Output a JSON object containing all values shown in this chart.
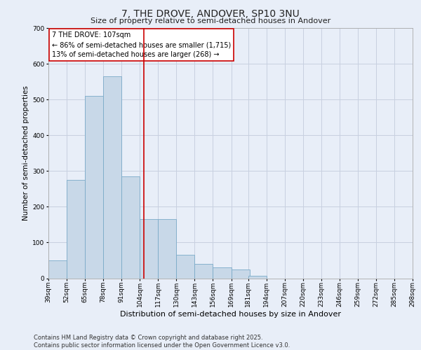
{
  "title_line1": "7, THE DROVE, ANDOVER, SP10 3NU",
  "title_line2": "Size of property relative to semi-detached houses in Andover",
  "xlabel": "Distribution of semi-detached houses by size in Andover",
  "ylabel": "Number of semi-detached properties",
  "footer_line1": "Contains HM Land Registry data © Crown copyright and database right 2025.",
  "footer_line2": "Contains public sector information licensed under the Open Government Licence v3.0.",
  "annotation_title": "7 THE DROVE: 107sqm",
  "annotation_line2": "← 86% of semi-detached houses are smaller (1,715)",
  "annotation_line3": "13% of semi-detached houses are larger (268) →",
  "bin_labels": [
    "39sqm",
    "52sqm",
    "65sqm",
    "78sqm",
    "91sqm",
    "104sqm",
    "117sqm",
    "130sqm",
    "143sqm",
    "156sqm",
    "169sqm",
    "181sqm",
    "194sqm",
    "207sqm",
    "220sqm",
    "233sqm",
    "246sqm",
    "259sqm",
    "272sqm",
    "285sqm",
    "298sqm"
  ],
  "bin_edges": [
    39,
    52,
    65,
    78,
    91,
    104,
    117,
    130,
    143,
    156,
    169,
    181,
    194,
    207,
    220,
    233,
    246,
    259,
    272,
    285,
    298
  ],
  "bar_heights": [
    50,
    275,
    510,
    565,
    285,
    165,
    165,
    65,
    40,
    30,
    25,
    7,
    0,
    0,
    0,
    0,
    0,
    0,
    0,
    0
  ],
  "bar_color": "#c8d8e8",
  "bar_edge_color": "#7aaac8",
  "vline_x": 107,
  "vline_color": "#cc0000",
  "ylim": [
    0,
    700
  ],
  "yticks": [
    0,
    100,
    200,
    300,
    400,
    500,
    600,
    700
  ],
  "grid_color": "#c8d0e0",
  "background_color": "#e8eef8",
  "title_fontsize": 10,
  "subtitle_fontsize": 8,
  "ylabel_fontsize": 7.5,
  "xlabel_fontsize": 8,
  "tick_fontsize": 6.5,
  "annotation_fontsize": 7,
  "footer_fontsize": 6
}
